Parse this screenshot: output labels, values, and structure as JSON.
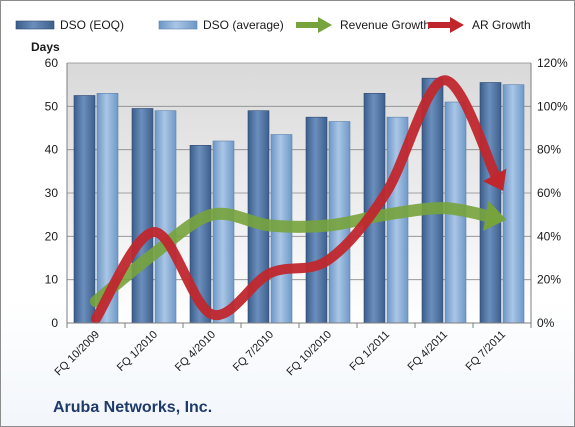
{
  "company_name": "Aruba Networks, Inc.",
  "chart_data": {
    "type": "bar",
    "categories": [
      "FQ 10/2009",
      "FQ 1/2010",
      "FQ 4/2010",
      "FQ 7/2010",
      "FQ 10/2010",
      "FQ 1/2011",
      "FQ 4/2011",
      "FQ 7/2011"
    ],
    "ylabel": "Days",
    "ylim": [
      0,
      60
    ],
    "yticks": [
      0,
      10,
      20,
      30,
      40,
      50,
      60
    ],
    "y2lim": [
      0,
      1.2
    ],
    "y2ticks": [
      "0%",
      "20%",
      "40%",
      "60%",
      "80%",
      "100%",
      "120%"
    ],
    "legend_position": "top",
    "grid": true,
    "series": [
      {
        "name": "DSO (EOQ)",
        "kind": "bar",
        "axis": "left",
        "color": "#4a6f9c",
        "values": [
          52.5,
          49.5,
          41,
          49,
          47.5,
          53,
          56.5,
          55.5
        ]
      },
      {
        "name": "DSO (average)",
        "kind": "bar",
        "axis": "left",
        "color": "#7fa7d3",
        "values": [
          53,
          49,
          42,
          43.5,
          46.5,
          47.5,
          51,
          55
        ]
      },
      {
        "name": "Revenue Growth",
        "kind": "arrow-line",
        "axis": "right",
        "color": "#77a33c",
        "values": [
          0.1,
          0.32,
          0.5,
          0.45,
          0.45,
          0.5,
          0.53,
          0.48
        ]
      },
      {
        "name": "AR Growth",
        "kind": "arrow-line",
        "axis": "right",
        "color": "#c0272d",
        "values": [
          0.02,
          0.42,
          0.04,
          0.23,
          0.29,
          0.6,
          1.12,
          0.62
        ]
      }
    ]
  }
}
